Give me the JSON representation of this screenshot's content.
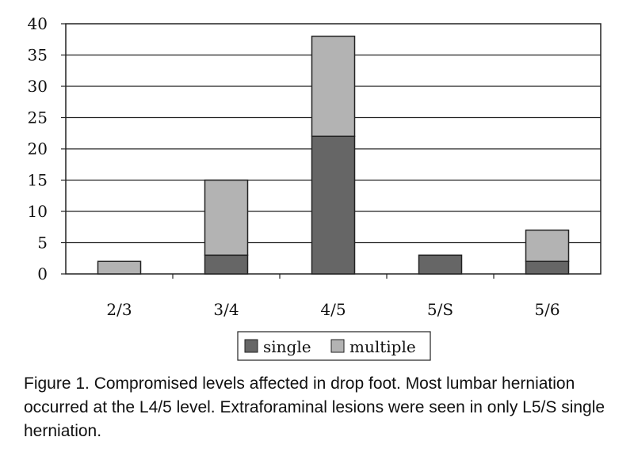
{
  "chart_data": {
    "type": "bar",
    "stacked": true,
    "categories": [
      "2/3",
      "3/4",
      "4/5",
      "5/S",
      "5/6"
    ],
    "series": [
      {
        "name": "single",
        "values": [
          0,
          3,
          22,
          3,
          2
        ],
        "color": "#666666"
      },
      {
        "name": "multiple",
        "values": [
          2,
          12,
          16,
          0,
          5
        ],
        "color": "#b3b3b3"
      }
    ],
    "ylim": [
      0,
      40
    ],
    "yticks": [
      "0",
      "5",
      "10",
      "15",
      "20",
      "25",
      "30",
      "35",
      "40"
    ],
    "grid": true,
    "legend": "bottom",
    "title": "",
    "xlabel": "",
    "ylabel": ""
  },
  "caption": "Figure 1.  Compromised levels affected in drop foot. Most lumbar herniation occurred at the L4/5 level. Extraforaminal lesions were seen in only L5/S single herniation."
}
